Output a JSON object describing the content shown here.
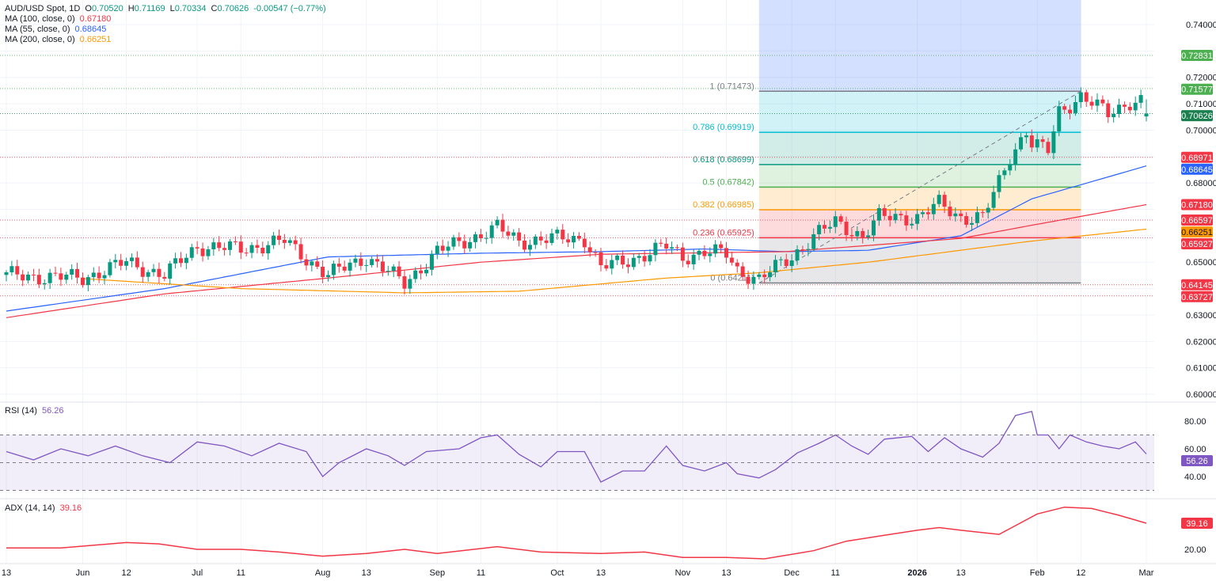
{
  "legend": {
    "symbol": "AUD/USD Spot, 1D",
    "o_label": "O",
    "o": "0.70520",
    "h_label": "H",
    "h": "0.71169",
    "l_label": "L",
    "l": "0.70334",
    "c_label": "C",
    "c": "0.70626",
    "change": "-0.00547 (−0.77%)",
    "ma100_label": "MA (100, close, 0)",
    "ma100": "0.67180",
    "ma55_label": "MA (55, close, 0)",
    "ma55": "0.68645",
    "ma200_label": "MA (200, close, 0)",
    "ma200": "0.66251",
    "rsi_label": "RSI (14)",
    "rsi": "56.26",
    "adx_label": "ADX (14, 14)",
    "adx": "39.16"
  },
  "colors": {
    "up": "#089981",
    "down": "#f23645",
    "ma55": "#2962ff",
    "ma100": "#f23645",
    "ma200": "#ff9800",
    "rsi": "#7e57c2",
    "adx": "#f23645"
  },
  "chart_data": [
    {
      "type": "candlestick",
      "title": "AUD/USD Spot, 1D",
      "ylim": [
        0.6,
        0.74
      ],
      "y_ticks": [
        "0.74000",
        "0.72000",
        "0.71000",
        "0.70000",
        "0.68000",
        "0.65000",
        "0.63000",
        "0.62000",
        "0.61000",
        "0.60000"
      ],
      "x_ticks": [
        {
          "label": "13",
          "date": "2025-05-13"
        },
        {
          "label": "Jun",
          "date": "2025-06-02"
        },
        {
          "label": "12",
          "date": "2025-06-12"
        },
        {
          "label": "Jul",
          "date": "2025-07-01"
        },
        {
          "label": "11",
          "date": "2025-07-11"
        },
        {
          "label": "Aug",
          "date": "2025-08-01"
        },
        {
          "label": "13",
          "date": "2025-08-13"
        },
        {
          "label": "Sep",
          "date": "2025-09-01"
        },
        {
          "label": "11",
          "date": "2025-09-11"
        },
        {
          "label": "Oct",
          "date": "2025-10-01"
        },
        {
          "label": "13",
          "date": "2025-10-13"
        },
        {
          "label": "Nov",
          "date": "2025-11-03"
        },
        {
          "label": "13",
          "date": "2025-11-13"
        },
        {
          "label": "Dec",
          "date": "2025-12-01"
        },
        {
          "label": "11",
          "date": "2025-12-11"
        },
        {
          "label": "2026",
          "date": "2026-01-01"
        },
        {
          "label": "13",
          "date": "2026-01-13"
        },
        {
          "label": "Feb",
          "date": "2026-02-02"
        },
        {
          "label": "12",
          "date": "2026-02-12"
        },
        {
          "label": "Mar",
          "date": "2026-03-02"
        }
      ],
      "close_path": [
        [
          "2025-05-13",
          0.645
        ],
        [
          "2025-06-02",
          0.644
        ],
        [
          "2025-06-12",
          0.65
        ],
        [
          "2025-06-23",
          0.645
        ],
        [
          "2025-07-01",
          0.656
        ],
        [
          "2025-07-11",
          0.655
        ],
        [
          "2025-07-23",
          0.658
        ],
        [
          "2025-08-04",
          0.645
        ],
        [
          "2025-08-13",
          0.652
        ],
        [
          "2025-08-22",
          0.642
        ],
        [
          "2025-09-01",
          0.654
        ],
        [
          "2025-09-16",
          0.663
        ],
        [
          "2025-09-22",
          0.658
        ],
        [
          "2025-10-01",
          0.659
        ],
        [
          "2025-10-08",
          0.659
        ],
        [
          "2025-10-13",
          0.648
        ],
        [
          "2025-10-17",
          0.65
        ],
        [
          "2025-10-29",
          0.656
        ],
        [
          "2025-11-03",
          0.652
        ],
        [
          "2025-11-07",
          0.654
        ],
        [
          "2025-11-13",
          0.653
        ],
        [
          "2025-11-17",
          0.647
        ],
        [
          "2025-11-21",
          0.6435
        ],
        [
          "2025-12-01",
          0.652
        ],
        [
          "2025-12-05",
          0.66
        ],
        [
          "2025-12-11",
          0.665
        ],
        [
          "2025-12-18",
          0.66
        ],
        [
          "2025-12-23",
          0.667
        ],
        [
          "2026-01-01",
          0.667
        ],
        [
          "2026-01-07",
          0.672
        ],
        [
          "2026-01-13",
          0.667
        ],
        [
          "2026-01-19",
          0.667
        ],
        [
          "2026-01-22",
          0.68
        ],
        [
          "2026-01-26",
          0.69
        ],
        [
          "2026-01-29",
          0.7
        ],
        [
          "2026-01-30",
          0.695
        ],
        [
          "2026-02-04",
          0.692
        ],
        [
          "2026-02-06",
          0.707
        ],
        [
          "2026-02-12",
          0.713
        ],
        [
          "2026-02-19",
          0.706
        ],
        [
          "2026-02-25",
          0.711
        ],
        [
          "2026-02-27",
          0.711
        ],
        [
          "2026-03-02",
          0.70626
        ]
      ],
      "last_bar": {
        "open": 0.7052,
        "high": 0.71169,
        "low": 0.70334,
        "close": 0.70626
      },
      "moving_averages": [
        {
          "name": "MA (55, close, 0)",
          "color": "#2962ff",
          "points": [
            [
              "2025-05-13",
              0.6315
            ],
            [
              "2025-06-23",
              0.64
            ],
            [
              "2025-08-04",
              0.652
            ],
            [
              "2025-09-11",
              0.6534
            ],
            [
              "2025-10-13",
              0.654
            ],
            [
              "2025-11-07",
              0.655
            ],
            [
              "2025-11-28",
              0.654
            ],
            [
              "2025-12-19",
              0.6545
            ],
            [
              "2026-01-13",
              0.66
            ],
            [
              "2026-01-30",
              0.674
            ],
            [
              "2026-03-02",
              0.68645
            ]
          ]
        },
        {
          "name": "MA (100, close, 0)",
          "color": "#f23645",
          "points": [
            [
              "2025-05-13",
              0.629
            ],
            [
              "2025-06-23",
              0.638
            ],
            [
              "2025-08-04",
              0.644
            ],
            [
              "2025-09-11",
              0.65
            ],
            [
              "2025-10-13",
              0.653
            ],
            [
              "2025-11-28",
              0.654
            ],
            [
              "2026-01-13",
              0.659
            ],
            [
              "2026-01-30",
              0.664
            ],
            [
              "2026-03-02",
              0.6718
            ]
          ]
        },
        {
          "name": "MA (200, close, 0)",
          "color": "#ff9800",
          "points": [
            [
              "2025-06-02",
              0.6438
            ],
            [
              "2025-07-11",
              0.64
            ],
            [
              "2025-08-22",
              0.6384
            ],
            [
              "2025-09-22",
              0.639
            ],
            [
              "2025-10-29",
              0.644
            ],
            [
              "2025-11-21",
              0.646
            ],
            [
              "2025-12-19",
              0.65
            ],
            [
              "2026-01-30",
              0.658
            ],
            [
              "2026-03-02",
              0.66251
            ]
          ]
        }
      ],
      "horizontal_levels": [
        {
          "value": "0.72831",
          "price": 0.72831,
          "color": "#4caf50"
        },
        {
          "value": "0.71577",
          "price": 0.71577,
          "color": "#4caf50"
        },
        {
          "value": "0.70626",
          "price": 0.70626,
          "color": "#1b7f4f"
        },
        {
          "value": "0.68971",
          "price": 0.68971,
          "color": "#f23645"
        },
        {
          "value": "0.66597",
          "price": 0.66597,
          "color": "#f23645"
        },
        {
          "value": "0.65927",
          "price": 0.65927,
          "color": "#f23645"
        },
        {
          "value": "0.64145",
          "price": 0.64145,
          "color": "#f23645"
        },
        {
          "value": "0.63727",
          "price": 0.63727,
          "color": "#f23645"
        }
      ],
      "price_badges": [
        {
          "value": "0.68645",
          "price": 0.68645,
          "color": "#2962ff",
          "text": "#ffffff"
        },
        {
          "value": "0.67180",
          "price": 0.6718,
          "color": "#f23645",
          "text": "#ffffff"
        },
        {
          "value": "0.66251",
          "price": 0.66251,
          "color": "#ff9800",
          "text": "#131722"
        }
      ],
      "fibonacci": {
        "start": {
          "date": "2025-11-21",
          "price": 0.64211
        },
        "end": {
          "date": "2026-02-12",
          "price": 0.71473
        },
        "levels": [
          {
            "label": "1 (0.71473)",
            "level": 1,
            "price": 0.71473,
            "color": "#787b86"
          },
          {
            "label": "0.786 (0.69919)",
            "level": 0.786,
            "price": 0.69919,
            "color": "#00bcd4"
          },
          {
            "label": "0.618 (0.68699)",
            "level": 0.618,
            "price": 0.68699,
            "color": "#089981"
          },
          {
            "label": "0.5 (0.67842)",
            "level": 0.5,
            "price": 0.67842,
            "color": "#4caf50"
          },
          {
            "label": "0.382 (0.66985)",
            "level": 0.382,
            "price": 0.66985,
            "color": "#ff9800"
          },
          {
            "label": "0.236 (0.65925)",
            "level": 0.236,
            "price": 0.65925,
            "color": "#f23645"
          },
          {
            "label": "0 (0.64211)",
            "level": 0,
            "price": 0.64211,
            "color": "#787b86"
          }
        ]
      }
    },
    {
      "type": "line",
      "name": "RSI (14)",
      "ylim": [
        28,
        92
      ],
      "y_ticks": [
        "80.00",
        "60.00",
        "40.00"
      ],
      "bands": [
        30,
        50,
        70
      ],
      "points": [
        [
          "2025-05-13",
          58
        ],
        [
          "2025-05-20",
          52
        ],
        [
          "2025-05-27",
          60
        ],
        [
          "2025-06-03",
          55
        ],
        [
          "2025-06-10",
          62
        ],
        [
          "2025-06-17",
          55
        ],
        [
          "2025-06-24",
          50
        ],
        [
          "2025-07-01",
          65
        ],
        [
          "2025-07-08",
          62
        ],
        [
          "2025-07-15",
          55
        ],
        [
          "2025-07-22",
          64
        ],
        [
          "2025-07-29",
          58
        ],
        [
          "2025-08-01",
          40
        ],
        [
          "2025-08-06",
          50
        ],
        [
          "2025-08-13",
          60
        ],
        [
          "2025-08-19",
          55
        ],
        [
          "2025-08-22",
          48
        ],
        [
          "2025-08-28",
          58
        ],
        [
          "2025-09-05",
          60
        ],
        [
          "2025-09-11",
          68
        ],
        [
          "2025-09-16",
          70
        ],
        [
          "2025-09-22",
          56
        ],
        [
          "2025-09-26",
          47
        ],
        [
          "2025-10-01",
          58
        ],
        [
          "2025-10-08",
          58
        ],
        [
          "2025-10-13",
          36
        ],
        [
          "2025-10-17",
          44
        ],
        [
          "2025-10-23",
          44
        ],
        [
          "2025-10-29",
          62
        ],
        [
          "2025-11-03",
          48
        ],
        [
          "2025-11-07",
          44
        ],
        [
          "2025-11-13",
          50
        ],
        [
          "2025-11-17",
          42
        ],
        [
          "2025-11-21",
          39
        ],
        [
          "2025-11-26",
          45
        ],
        [
          "2025-12-02",
          57
        ],
        [
          "2025-12-08",
          64
        ],
        [
          "2025-12-11",
          70
        ],
        [
          "2025-12-16",
          62
        ],
        [
          "2025-12-19",
          56
        ],
        [
          "2025-12-24",
          67
        ],
        [
          "2025-12-31",
          69
        ],
        [
          "2026-01-05",
          58
        ],
        [
          "2026-01-08",
          68
        ],
        [
          "2026-01-13",
          60
        ],
        [
          "2026-01-19",
          54
        ],
        [
          "2026-01-22",
          64
        ],
        [
          "2026-01-27",
          84
        ],
        [
          "2026-01-30",
          87
        ],
        [
          "2026-02-02",
          70
        ],
        [
          "2026-02-04",
          70
        ],
        [
          "2026-02-06",
          60
        ],
        [
          "2026-02-10",
          70
        ],
        [
          "2026-02-13",
          65
        ],
        [
          "2026-02-18",
          62
        ],
        [
          "2026-02-23",
          60
        ],
        [
          "2026-02-26",
          65
        ],
        [
          "2026-03-02",
          56.26
        ]
      ]
    },
    {
      "type": "line",
      "name": "ADX (14, 14)",
      "y_ticks": [
        "20.00"
      ],
      "points": [
        [
          "2025-05-13",
          21
        ],
        [
          "2025-05-27",
          21
        ],
        [
          "2025-06-12",
          25
        ],
        [
          "2025-06-20",
          24
        ],
        [
          "2025-07-01",
          20
        ],
        [
          "2025-07-11",
          20
        ],
        [
          "2025-07-22",
          18
        ],
        [
          "2025-08-01",
          15
        ],
        [
          "2025-08-13",
          17
        ],
        [
          "2025-08-22",
          20
        ],
        [
          "2025-09-01",
          17
        ],
        [
          "2025-09-16",
          22
        ],
        [
          "2025-09-26",
          18
        ],
        [
          "2025-10-13",
          17
        ],
        [
          "2025-10-23",
          18
        ],
        [
          "2025-11-03",
          14
        ],
        [
          "2025-11-13",
          14
        ],
        [
          "2025-11-24",
          13
        ],
        [
          "2025-12-05",
          19
        ],
        [
          "2025-12-15",
          26
        ],
        [
          "2025-12-25",
          31
        ],
        [
          "2026-01-01",
          34
        ],
        [
          "2026-01-07",
          36
        ],
        [
          "2026-01-13",
          34
        ],
        [
          "2026-01-22",
          31
        ],
        [
          "2026-02-02",
          46
        ],
        [
          "2026-02-09",
          51
        ],
        [
          "2026-02-16",
          50
        ],
        [
          "2026-02-23",
          45
        ],
        [
          "2026-03-02",
          39.16
        ]
      ]
    }
  ]
}
